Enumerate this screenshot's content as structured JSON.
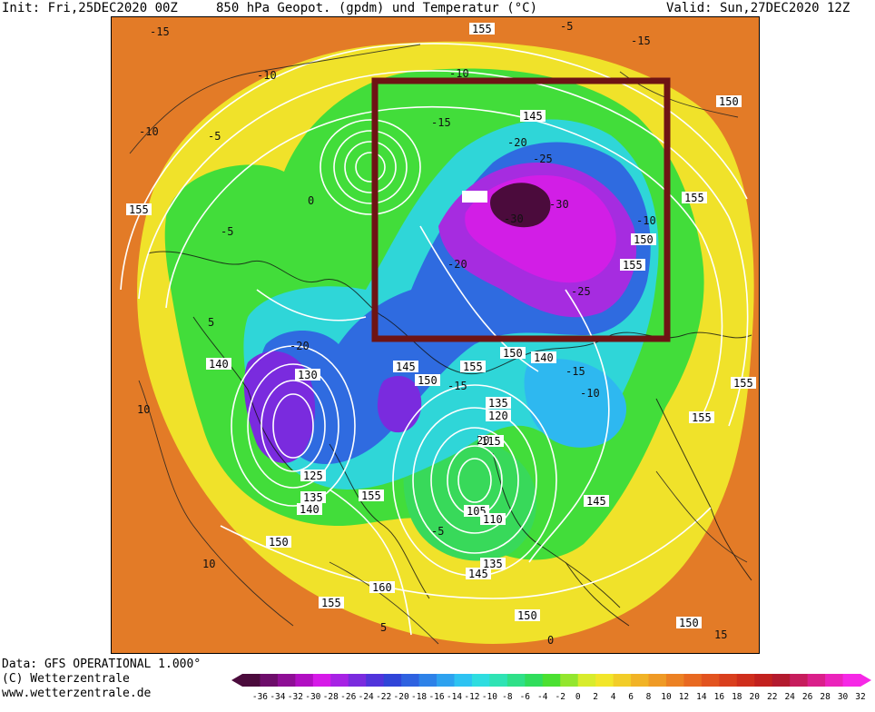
{
  "header": {
    "init": "Init: Fri,25DEC2020 00Z",
    "title": "850 hPa Geopot. (gpdm) und Temperatur (°C)",
    "valid": "Valid: Sun,27DEC2020 12Z"
  },
  "footer": {
    "data_source": "Data: GFS OPERATIONAL 1.000°",
    "copyright": "(C) Wetterzentrale",
    "url": "www.wetterzentrale.de"
  },
  "legend": {
    "ticks": [
      "-36",
      "-34",
      "-32",
      "-30",
      "-28",
      "-26",
      "-24",
      "-22",
      "-20",
      "-18",
      "-16",
      "-14",
      "-12",
      "-10",
      "-8",
      "-6",
      "-4",
      "-2",
      "0",
      "2",
      "4",
      "6",
      "8",
      "10",
      "12",
      "14",
      "16",
      "18",
      "20",
      "22",
      "24",
      "26",
      "28",
      "30",
      "32"
    ],
    "colors": [
      "#4b0b3c",
      "#6d0d6a",
      "#8e0e95",
      "#b10fc2",
      "#d61ae8",
      "#a722e4",
      "#7a2bde",
      "#5034db",
      "#3045d8",
      "#2f62e0",
      "#2e82e8",
      "#2ea2ef",
      "#2ec3f2",
      "#2fdde0",
      "#2fe3b4",
      "#2fe088",
      "#30dd5c",
      "#4be031",
      "#93e62e",
      "#d8ec2c",
      "#f2e62a",
      "#f2cd28",
      "#f1b326",
      "#ef9a25",
      "#ec8123",
      "#e86921",
      "#e2531f",
      "#d93f1d",
      "#cf2e1c",
      "#c2211e",
      "#b31a2e",
      "#c61c5c",
      "#da1f8a",
      "#eb23bb",
      "#f628e6"
    ]
  },
  "map": {
    "highlight_box_color": "#6e1414",
    "geopotential_labels": [
      "155",
      "150",
      "145",
      "140",
      "135",
      "130",
      "125",
      "120",
      "115",
      "110",
      "105",
      "160",
      "150",
      "145",
      "150",
      "150",
      "155",
      "150",
      "155",
      "140",
      "155",
      "155",
      "140",
      "150",
      "145",
      "150",
      "155",
      "145",
      "150",
      "155",
      "145",
      "135",
      "150",
      "155",
      "150",
      "160",
      "155",
      "140",
      "150",
      "145",
      "135",
      "120",
      "115"
    ],
    "temperature_labels": [
      "-15",
      "-10",
      "-5",
      "0",
      "5",
      "10",
      "15",
      "-20",
      "-25",
      "-30",
      "20"
    ]
  }
}
